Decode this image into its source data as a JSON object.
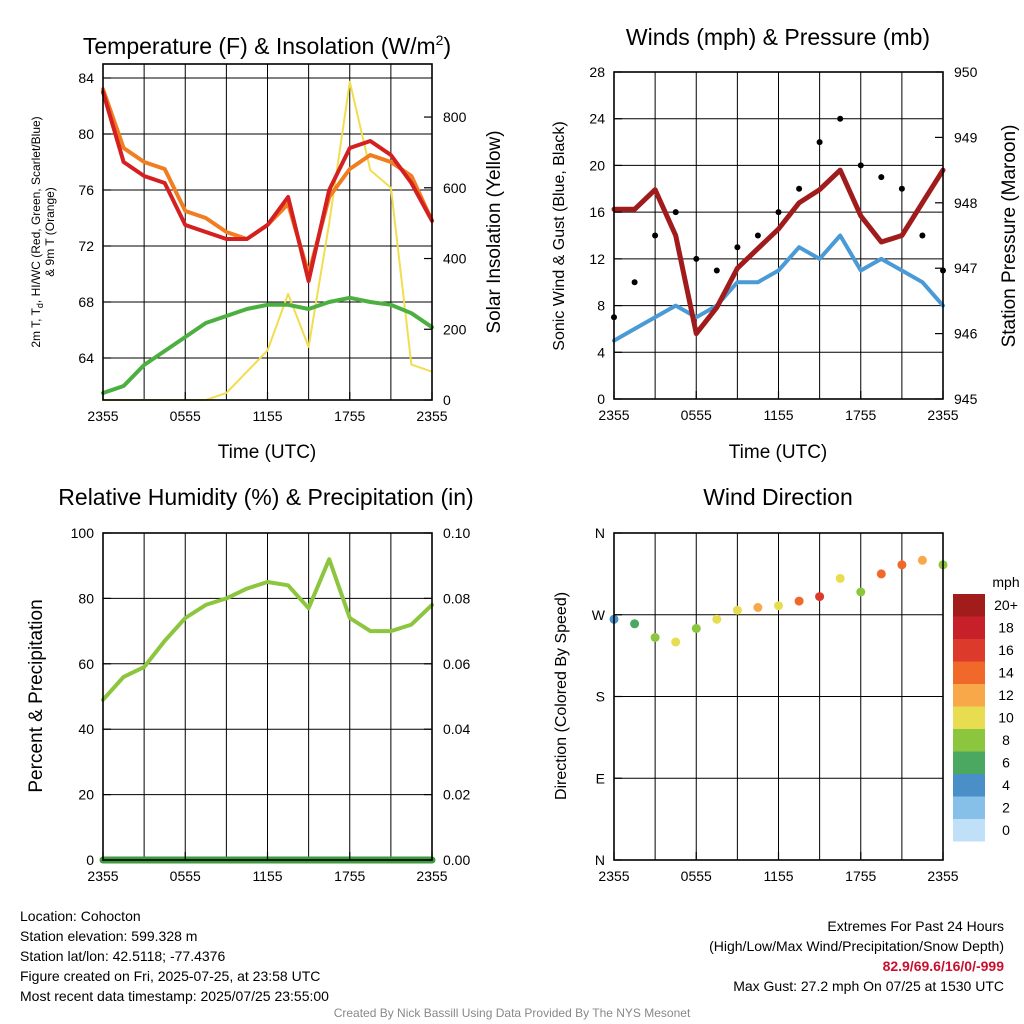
{
  "colors": {
    "temp": "#d42020",
    "dew": "#4cb040",
    "wc": "#d42020",
    "temp9m": "#f07d20",
    "insolation": "#f2dd50",
    "wind": "#4a9ad6",
    "gust": "#000000",
    "pressure": "#a01c1c",
    "rh": "#8cc63f",
    "precip": "#3d9a3d",
    "extremes": "#c8102e"
  },
  "time_ticks": [
    "2355",
    "0555",
    "1155",
    "1755",
    "2355"
  ],
  "charts": {
    "temperature": {
      "title": "Temperature (F) & Insolation (W/m²)",
      "title_main": "Temperature (F) & Insolation (W/m",
      "title_sup": "2",
      "title_end": ")",
      "ylabel_line1": "2m T, T",
      "ylabel_sub": "d",
      "ylabel_line1_end": ", HI/WC (Red, Green, Scarlet/Blue)",
      "ylabel_line2": "& 9m T (Orange)",
      "y2label": "Solar Insolation (Yellow)",
      "xlabel": "Time (UTC)",
      "yticks": [
        "64",
        "68",
        "72",
        "76",
        "80",
        "84"
      ],
      "y2ticks": [
        "0",
        "200",
        "400",
        "600",
        "800"
      ]
    },
    "winds": {
      "title": "Winds (mph) & Pressure (mb)",
      "ylabel": "Sonic Wind & Gust (Blue, Black)",
      "y2label": "Station Pressure (Maroon)",
      "xlabel": "Time (UTC)",
      "yticks": [
        "0",
        "4",
        "8",
        "12",
        "16",
        "20",
        "24",
        "28"
      ],
      "y2ticks": [
        "945",
        "946",
        "947",
        "948",
        "949",
        "950"
      ]
    },
    "humidity": {
      "title": "Relative Humidity (%) & Precipitation (in)",
      "ylabel": "Percent & Precipitation",
      "yticks": [
        "0",
        "20",
        "40",
        "60",
        "80",
        "100"
      ],
      "y2ticks": [
        "0.00",
        "0.02",
        "0.04",
        "0.06",
        "0.08",
        "0.10"
      ]
    },
    "direction": {
      "title": "Wind Direction",
      "ylabel": "Direction (Colored By Speed)",
      "yticks": [
        "N",
        "E",
        "S",
        "W",
        "N"
      ],
      "legend_title": "mph",
      "legend_labels": [
        "20+",
        "18",
        "16",
        "14",
        "12",
        "10",
        "8",
        "6",
        "4",
        "2",
        "0"
      ],
      "legend_colors": [
        "#a31c1c",
        "#c8202a",
        "#dc3a2a",
        "#f0682a",
        "#f8a848",
        "#e8dd50",
        "#8cc63f",
        "#4aa860",
        "#4a8fc8",
        "#86c0e8",
        "#c0e0f8"
      ]
    }
  },
  "chart_data": [
    {
      "type": "line",
      "title": "Temperature (F) & Insolation (W/m2)",
      "xlabel": "Time (UTC)",
      "x": [
        "2355",
        "0155",
        "0355",
        "0555",
        "0755",
        "0955",
        "1155",
        "1255",
        "1355",
        "1455",
        "1555",
        "1655",
        "1755",
        "1855",
        "1955",
        "2155",
        "2355"
      ],
      "ylim": [
        61,
        85
      ],
      "y2lim": [
        0,
        950
      ],
      "series": [
        {
          "name": "2m T (Red)",
          "axis": "left",
          "values": [
            83,
            78,
            77,
            76.5,
            73.5,
            73,
            72.5,
            72.5,
            73.5,
            75.5,
            69.5,
            76,
            79,
            79.5,
            78.5,
            76.5,
            73.8
          ]
        },
        {
          "name": "9m T (Orange)",
          "axis": "left",
          "values": [
            83.2,
            79,
            78,
            77.5,
            74.5,
            74,
            73,
            72.5,
            73.5,
            75,
            70,
            75.5,
            77.5,
            78.5,
            78,
            77,
            73.8
          ]
        },
        {
          "name": "Td (Green)",
          "axis": "left",
          "values": [
            61.5,
            62,
            63.5,
            64.5,
            65.5,
            66.5,
            67,
            67.5,
            67.8,
            67.8,
            67.5,
            68,
            68.3,
            68,
            67.8,
            67.2,
            66.2
          ]
        },
        {
          "name": "Solar Insolation (Yellow)",
          "axis": "right",
          "values": [
            0,
            0,
            0,
            0,
            0,
            0,
            20,
            80,
            140,
            300,
            150,
            500,
            900,
            650,
            600,
            100,
            80
          ]
        }
      ]
    },
    {
      "type": "line",
      "title": "Winds (mph) & Pressure (mb)",
      "xlabel": "Time (UTC)",
      "x": [
        "2355",
        "0155",
        "0355",
        "0555",
        "0755",
        "0955",
        "1155",
        "1255",
        "1355",
        "1455",
        "1555",
        "1655",
        "1755",
        "1855",
        "1955",
        "2155",
        "2355"
      ],
      "ylim": [
        0,
        28
      ],
      "y2lim": [
        945,
        950
      ],
      "series": [
        {
          "name": "Sonic Wind (Blue)",
          "axis": "left",
          "values": [
            5,
            6,
            7,
            8,
            7,
            8,
            10,
            10,
            11,
            13,
            12,
            14,
            11,
            12,
            11,
            10,
            8
          ]
        },
        {
          "name": "Gust (Black)",
          "axis": "left",
          "values": [
            7,
            10,
            14,
            16,
            12,
            11,
            13,
            14,
            16,
            18,
            22,
            24,
            20,
            19,
            18,
            14,
            11
          ]
        },
        {
          "name": "Station Pressure (Maroon)",
          "axis": "right",
          "values": [
            947.9,
            947.9,
            948.2,
            947.5,
            946.0,
            946.4,
            947.0,
            947.3,
            947.6,
            948.0,
            948.2,
            948.5,
            947.8,
            947.4,
            947.5,
            948.0,
            948.5
          ]
        }
      ]
    },
    {
      "type": "line",
      "title": "Relative Humidity (%) & Precipitation (in)",
      "x": [
        "2355",
        "0155",
        "0355",
        "0555",
        "0755",
        "0955",
        "1155",
        "1255",
        "1355",
        "1455",
        "1555",
        "1655",
        "1755",
        "1855",
        "1955",
        "2155",
        "2355"
      ],
      "ylim": [
        0,
        100
      ],
      "y2lim": [
        0,
        0.1
      ],
      "series": [
        {
          "name": "Relative Humidity",
          "axis": "left",
          "values": [
            49,
            56,
            59,
            67,
            74,
            78,
            80,
            83,
            85,
            84,
            77,
            92,
            74,
            70,
            70,
            72,
            78
          ]
        },
        {
          "name": "Precipitation",
          "axis": "right",
          "values": [
            0,
            0,
            0,
            0,
            0,
            0,
            0,
            0,
            0,
            0,
            0,
            0,
            0,
            0,
            0,
            0,
            0
          ]
        }
      ]
    },
    {
      "type": "scatter",
      "title": "Wind Direction",
      "x": [
        "2355",
        "0155",
        "0355",
        "0555",
        "0755",
        "0955",
        "1155",
        "1255",
        "1355",
        "1455",
        "1555",
        "1655",
        "1755",
        "1855",
        "1955",
        "2155",
        "2355"
      ],
      "yticks": [
        "N",
        "E",
        "S",
        "W",
        "N"
      ],
      "ylim": [
        0,
        360
      ],
      "series": [
        {
          "name": "Direction",
          "values": [
            265,
            260,
            245,
            240,
            255,
            265,
            275,
            278,
            280,
            285,
            290,
            310,
            295,
            315,
            325,
            330,
            325
          ],
          "speeds": [
            4,
            5,
            7,
            9,
            8,
            9,
            10,
            11,
            9,
            13,
            16,
            10,
            8,
            13,
            14,
            12,
            7
          ]
        }
      ]
    }
  ],
  "info": {
    "location": "Location: Cohocton",
    "elevation": "Station elevation: 599.328 m",
    "latlon": "Station lat/lon: 42.5118; -77.4376",
    "created": "Figure created on Fri, 2025-07-25, at 23:58 UTC",
    "recent": "Most recent data timestamp: 2025/07/25 23:55:00",
    "extremes_title": "Extremes For Past 24 Hours",
    "extremes_sub": "(High/Low/Max Wind/Precipitation/Snow Depth)",
    "extremes_values": "82.9/69.6/16/0/-999",
    "max_gust": "Max Gust: 27.2 mph On 07/25 at 1530 UTC",
    "credit": "Created By Nick Bassill Using Data Provided By The NYS Mesonet"
  }
}
